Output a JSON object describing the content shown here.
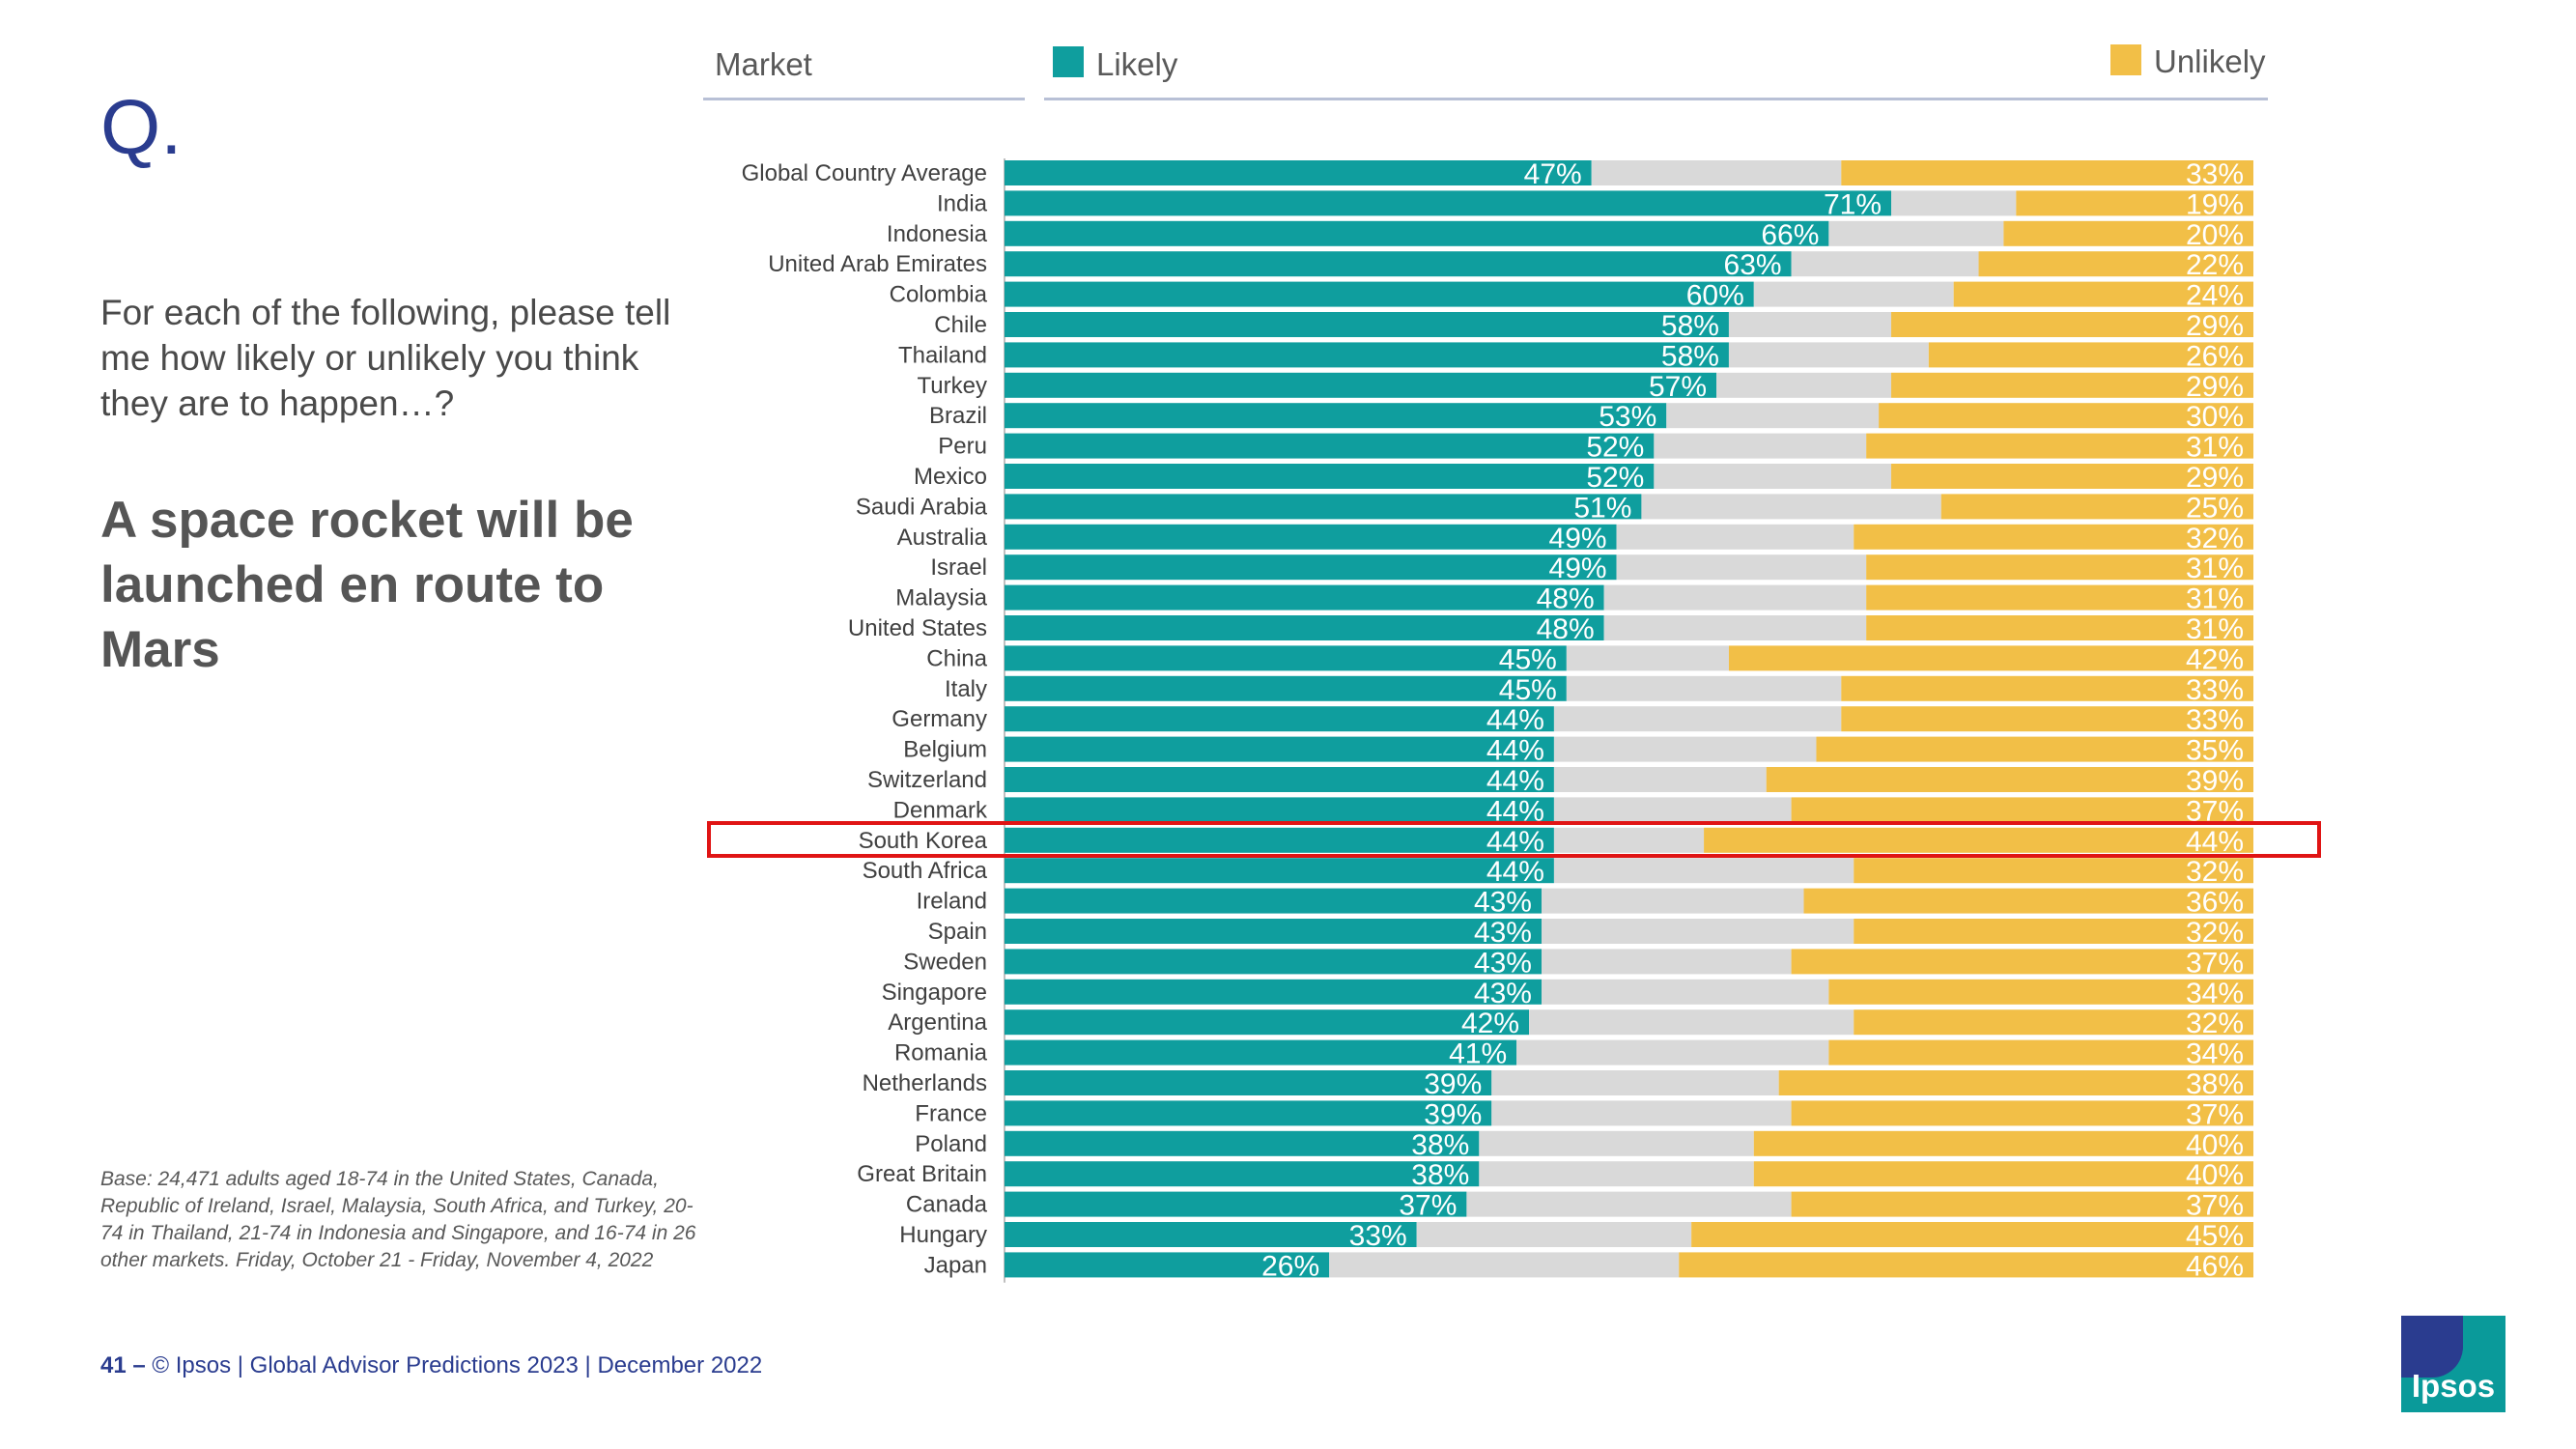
{
  "slide": {
    "q_mark": "Q.",
    "question": "For each of the following, please tell me how likely or unlikely you think they are to happen…?",
    "statement": "A space rocket will be launched en route to Mars",
    "base_note": "Base: 24,471 adults aged 18-74 in the United States, Canada, Republic of Ireland, Israel, Malaysia, South Africa, and Turkey, 20-74 in Thailand, 21-74 in Indonesia and Singapore, and 16-74 in 26 other markets. Friday, October 21 -  Friday, November 4, 2022",
    "footer_page": "41 –",
    "footer_text": "© Ipsos | Global Advisor Predictions 2023 | December 2022",
    "logo_text": "Ipsos"
  },
  "chart_data": {
    "type": "bar",
    "orientation": "horizontal-stacked-100",
    "header_market": "Market",
    "highlighted_category": "South Korea",
    "colors": {
      "likely": "#0f9e9e",
      "neutral": "#d9d9d9",
      "unlikely": "#f2bf47"
    },
    "categories": [
      "Global Country Average",
      "India",
      "Indonesia",
      "United Arab Emirates",
      "Colombia",
      "Chile",
      "Thailand",
      "Turkey",
      "Brazil",
      "Peru",
      "Mexico",
      "Saudi Arabia",
      "Australia",
      "Israel",
      "Malaysia",
      "United States",
      "China",
      "Italy",
      "Germany",
      "Belgium",
      "Switzerland",
      "Denmark",
      "South Korea",
      "South Africa",
      "Ireland",
      "Spain",
      "Sweden",
      "Singapore",
      "Argentina",
      "Romania",
      "Netherlands",
      "France",
      "Poland",
      "Great Britain",
      "Canada",
      "Hungary",
      "Japan"
    ],
    "series": [
      {
        "name": "Likely",
        "values": [
          47,
          71,
          66,
          63,
          60,
          58,
          58,
          57,
          53,
          52,
          52,
          51,
          49,
          49,
          48,
          48,
          45,
          45,
          44,
          44,
          44,
          44,
          44,
          44,
          43,
          43,
          43,
          43,
          42,
          41,
          39,
          39,
          38,
          38,
          37,
          33,
          26
        ]
      },
      {
        "name": "Unlikely",
        "values": [
          33,
          19,
          20,
          22,
          24,
          29,
          26,
          29,
          30,
          31,
          29,
          25,
          32,
          31,
          31,
          31,
          42,
          33,
          33,
          35,
          39,
          37,
          44,
          32,
          36,
          32,
          37,
          34,
          32,
          34,
          38,
          37,
          40,
          40,
          37,
          45,
          46
        ]
      }
    ],
    "xlim": [
      0,
      100
    ]
  }
}
